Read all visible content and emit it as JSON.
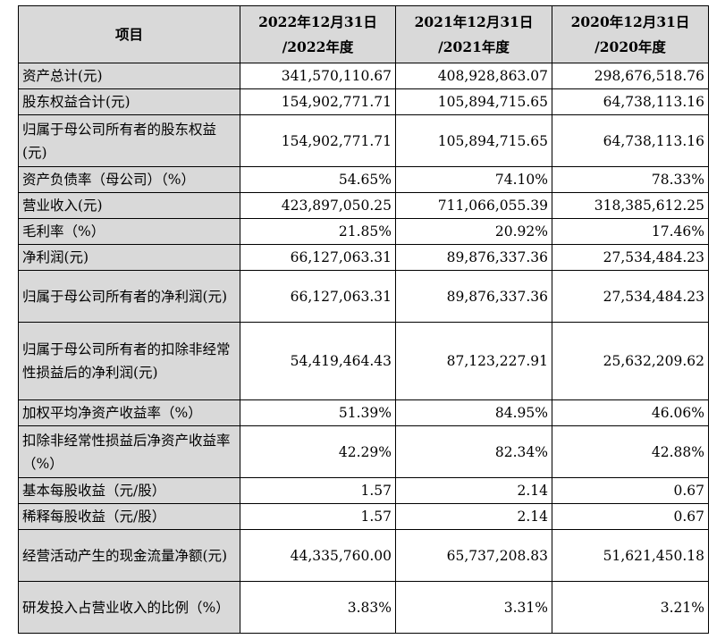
{
  "table": {
    "headers": [
      "项目",
      "2022年12月31日 /2022年度",
      "2021年12月31日 /2021年度",
      "2020年12月31日 /2020年度"
    ],
    "rows": [
      {
        "label": "资产总计(元)",
        "values": [
          "341,570,110.67",
          "408,928,863.07",
          "298,676,518.76"
        ]
      },
      {
        "label": "股东权益合计(元)",
        "values": [
          "154,902,771.71",
          "105,894,715.65",
          "64,738,113.16"
        ]
      },
      {
        "label": "归属于母公司所有者的股东权益(元)",
        "values": [
          "154,902,771.71",
          "105,894,715.65",
          "64,738,113.16"
        ]
      },
      {
        "label": "资产负债率（母公司）（%）",
        "values": [
          "54.65%",
          "74.10%",
          "78.33%"
        ]
      },
      {
        "label": "营业收入(元)",
        "values": [
          "423,897,050.25",
          "711,066,055.39",
          "318,385,612.25"
        ]
      },
      {
        "label": "毛利率（%）",
        "values": [
          "21.85%",
          "20.92%",
          "17.46%"
        ]
      },
      {
        "label": "净利润(元)",
        "values": [
          "66,127,063.31",
          "89,876,337.36",
          "27,534,484.23"
        ]
      },
      {
        "label": "归属于母公司所有者的净利润(元)",
        "values": [
          "66,127,063.31",
          "89,876,337.36",
          "27,534,484.23"
        ]
      },
      {
        "label": "归属于母公司所有者的扣除非经常性损益后的净利润(元)",
        "values": [
          "54,419,464.43",
          "87,123,227.91",
          "25,632,209.62"
        ]
      },
      {
        "label": "加权平均净资产收益率（%）",
        "values": [
          "51.39%",
          "84.95%",
          "46.06%"
        ]
      },
      {
        "label": "扣除非经常性损益后净资产收益率（%）",
        "values": [
          "42.29%",
          "82.34%",
          "42.88%"
        ]
      },
      {
        "label": "基本每股收益（元/股）",
        "values": [
          "1.57",
          "2.14",
          "0.67"
        ]
      },
      {
        "label": "稀释每股收益（元/股）",
        "values": [
          "1.57",
          "2.14",
          "0.67"
        ]
      },
      {
        "label": "经营活动产生的现金流量净额(元)",
        "values": [
          "44,335,760.00",
          "65,737,208.83",
          "51,621,450.18"
        ]
      },
      {
        "label": "研发投入占营业收入的比例（%）",
        "values": [
          "3.83%",
          "3.31%",
          "3.21%"
        ]
      }
    ]
  },
  "colors": {
    "header_bg": "#d9d9d9",
    "label_bg": "#d9d9d9",
    "border": "#000000"
  }
}
